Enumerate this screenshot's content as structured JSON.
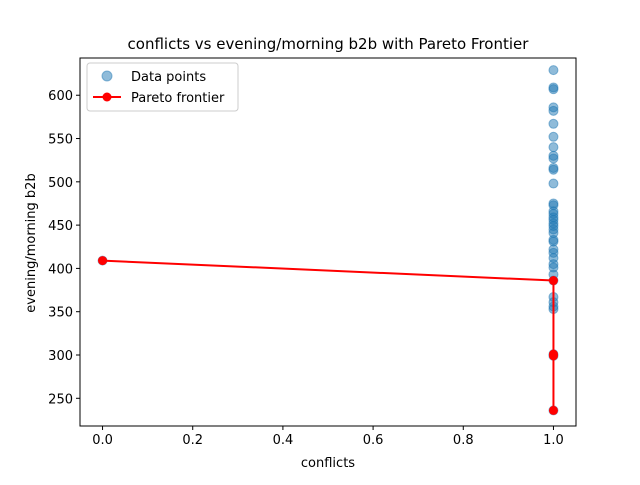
{
  "chart_data": {
    "type": "scatter",
    "title": "conflicts vs evening/morning b2b with Pareto Frontier",
    "xlabel": "conflicts",
    "ylabel": "evening/morning b2b",
    "xlim": [
      -0.05,
      1.05
    ],
    "ylim": [
      218,
      643
    ],
    "x_ticks": [
      0.0,
      0.2,
      0.4,
      0.6,
      0.8,
      1.0
    ],
    "x_tick_labels": [
      "0.0",
      "0.2",
      "0.4",
      "0.6",
      "0.8",
      "1.0"
    ],
    "y_ticks": [
      250,
      300,
      350,
      400,
      450,
      500,
      550,
      600
    ],
    "y_tick_labels": [
      "250",
      "300",
      "350",
      "400",
      "450",
      "500",
      "550",
      "600"
    ],
    "grid": false,
    "legend_position": "top-left",
    "series": [
      {
        "name": "Data points",
        "kind": "scatter",
        "color": "#1f77b4",
        "points": [
          [
            0,
            409
          ],
          [
            1,
            236
          ],
          [
            1,
            299
          ],
          [
            1,
            301
          ],
          [
            1,
            353
          ],
          [
            1,
            356
          ],
          [
            1,
            361
          ],
          [
            1,
            367
          ],
          [
            1,
            386
          ],
          [
            1,
            393
          ],
          [
            1,
            401
          ],
          [
            1,
            405
          ],
          [
            1,
            412
          ],
          [
            1,
            418
          ],
          [
            1,
            422
          ],
          [
            1,
            431
          ],
          [
            1,
            433
          ],
          [
            1,
            441
          ],
          [
            1,
            445
          ],
          [
            1,
            449
          ],
          [
            1,
            452
          ],
          [
            1,
            456
          ],
          [
            1,
            459
          ],
          [
            1,
            463
          ],
          [
            1,
            466
          ],
          [
            1,
            473
          ],
          [
            1,
            475
          ],
          [
            1,
            498
          ],
          [
            1,
            514
          ],
          [
            1,
            516
          ],
          [
            1,
            527
          ],
          [
            1,
            530
          ],
          [
            1,
            540
          ],
          [
            1,
            552
          ],
          [
            1,
            567
          ],
          [
            1,
            582
          ],
          [
            1,
            586
          ],
          [
            1,
            607
          ],
          [
            1,
            609
          ],
          [
            1,
            629
          ]
        ]
      },
      {
        "name": "Pareto frontier",
        "kind": "line",
        "color": "#ff0000",
        "points": [
          [
            0,
            409
          ],
          [
            1,
            386
          ],
          [
            1,
            301
          ],
          [
            1,
            299
          ],
          [
            1,
            236
          ]
        ]
      }
    ]
  }
}
